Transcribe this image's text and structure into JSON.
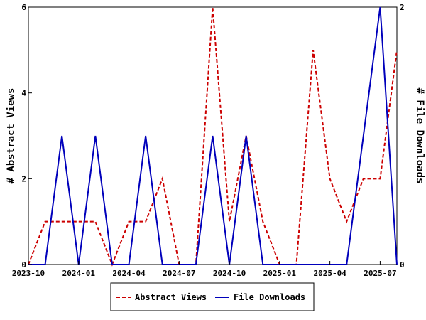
{
  "chart_data": {
    "type": "line",
    "x": [
      "2023-10",
      "2023-11",
      "2023-12",
      "2024-01",
      "2024-02",
      "2024-03",
      "2024-04",
      "2024-05",
      "2024-06",
      "2024-07",
      "2024-08",
      "2024-09",
      "2024-10",
      "2024-11",
      "2024-12",
      "2025-01",
      "2025-02",
      "2025-03",
      "2025-04",
      "2025-05",
      "2025-06",
      "2025-07",
      "2025-08"
    ],
    "x_tick_labels": [
      "2023-10",
      "2024-01",
      "2024-04",
      "2024-07",
      "2024-10",
      "2025-01",
      "2025-04",
      "2025-07"
    ],
    "series": [
      {
        "name": "Abstract Views",
        "axis": "left",
        "color": "#cc0000",
        "dash": "dashed",
        "values": [
          0,
          1,
          1,
          1,
          1,
          0,
          1,
          1,
          2,
          0,
          0,
          6,
          1,
          3,
          1,
          0,
          0,
          5,
          2,
          1,
          2,
          2,
          5
        ]
      },
      {
        "name": "File Downloads",
        "axis": "right",
        "color": "#0000bb",
        "dash": "solid",
        "values": [
          0,
          0,
          1,
          0,
          1,
          0,
          0,
          1,
          0,
          0,
          0,
          1,
          0,
          1,
          0,
          0,
          0,
          0,
          0,
          0,
          1,
          2,
          0
        ]
      }
    ],
    "ylabel": "# Abstract Views",
    "y2label": "# File Downloads",
    "ylim": [
      0,
      6
    ],
    "y2lim": [
      0,
      2
    ],
    "yticks": [
      0,
      2,
      4,
      6
    ],
    "y2ticks": [
      0,
      2
    ],
    "grid": false,
    "legend": "bottom"
  }
}
